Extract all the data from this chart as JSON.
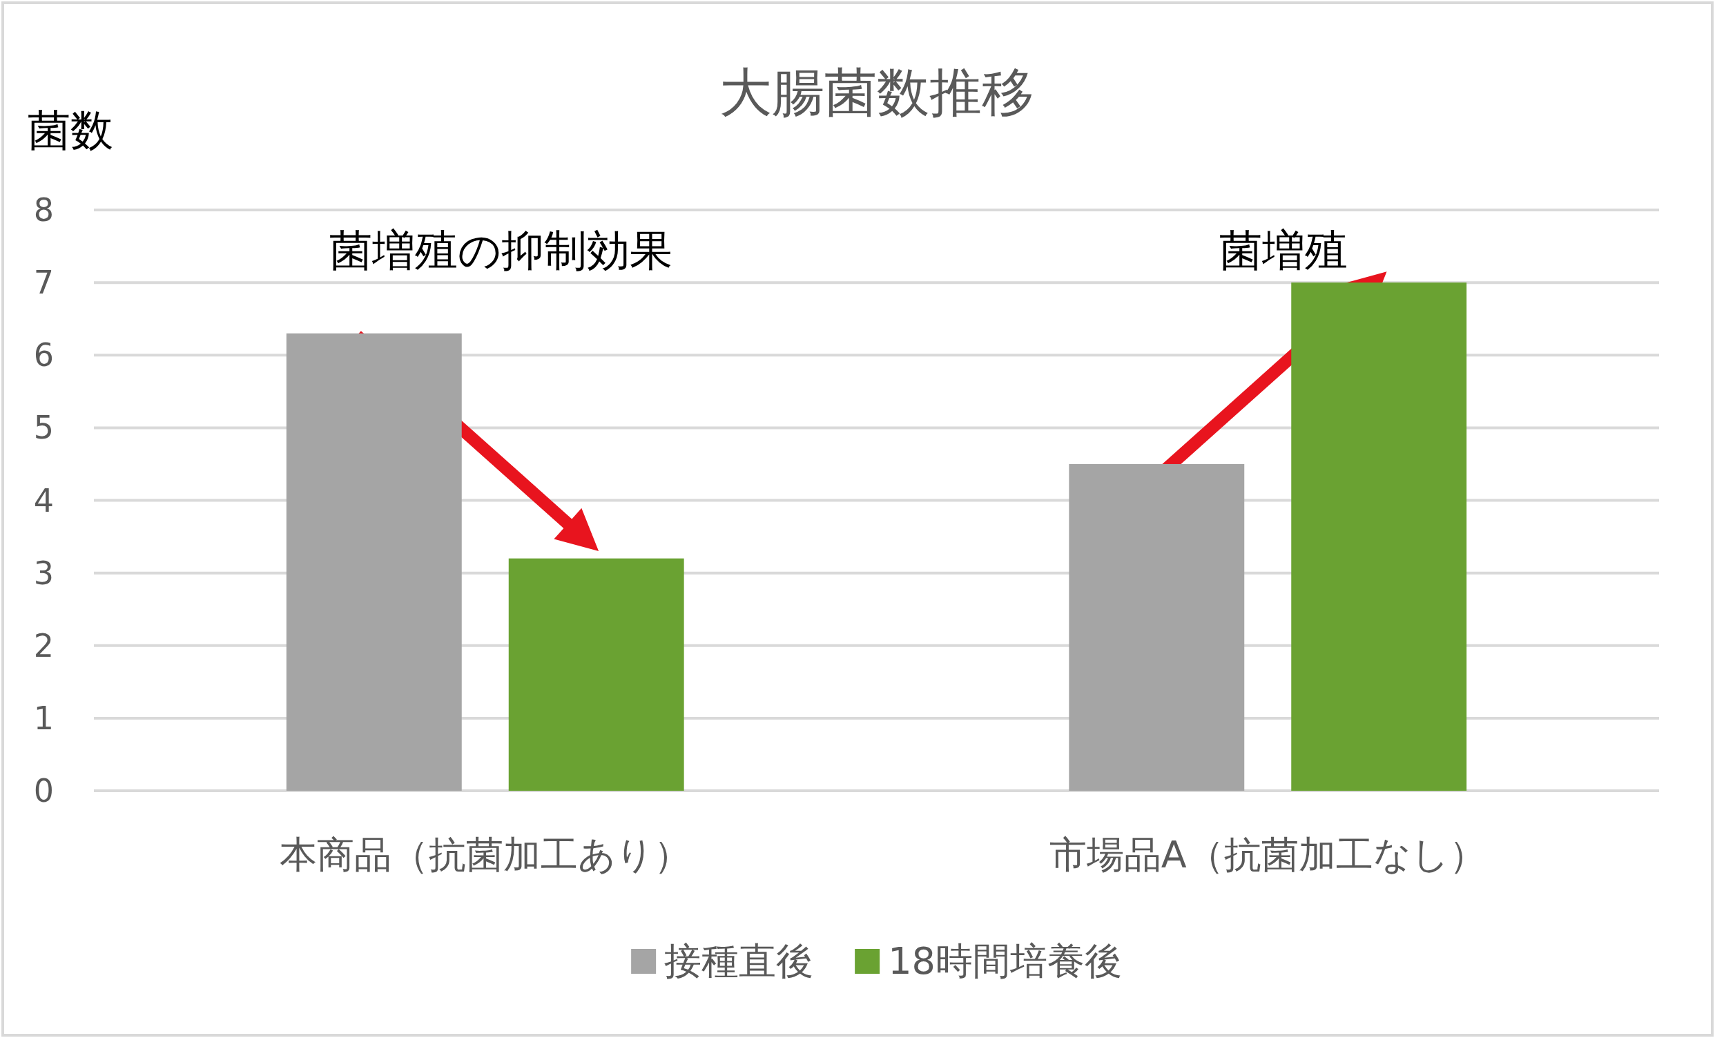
{
  "chart_data": {
    "type": "bar",
    "title": "大腸菌数推移",
    "ylabel": "菌数",
    "categories": [
      "本商品（抗菌加工あり）",
      "市場品A（抗菌加工なし）"
    ],
    "series": [
      {
        "name": "接種直後",
        "color": "#a5a5a5",
        "values": [
          6.3,
          4.5
        ]
      },
      {
        "name": "18時間培養後",
        "color": "#6aa232",
        "values": [
          3.2,
          7.0
        ]
      }
    ],
    "ylim": [
      0,
      8
    ],
    "yticks": [
      0,
      1,
      2,
      3,
      4,
      5,
      6,
      7,
      8
    ],
    "grid": "y",
    "legend": "bottom",
    "annotations": [
      "菌増殖の抑制効果",
      "菌増殖"
    ]
  }
}
